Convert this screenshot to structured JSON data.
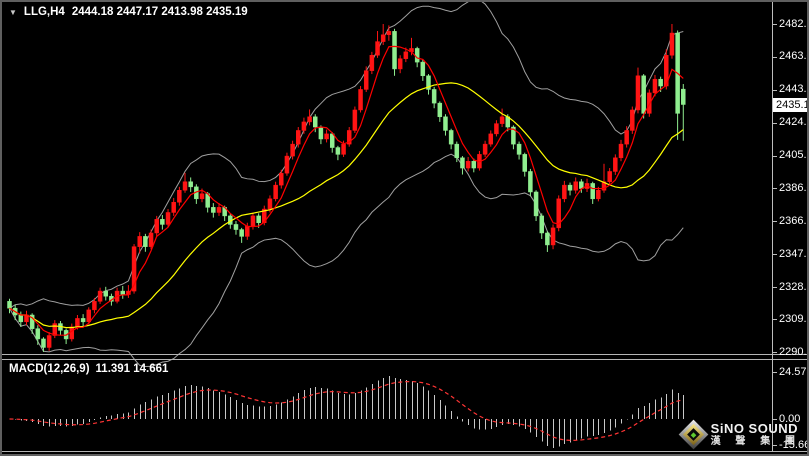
{
  "header": {
    "dropdown_glyph": "▼",
    "symbol_period": "LLG,H4",
    "ohlc_text": "2444.18 2447.17 2413.98 2435.19"
  },
  "macd_panel": {
    "indicator_label": "MACD(12,26,9)",
    "values_text": "11.391 14.661"
  },
  "logo": {
    "brand": "SiNO SOUND",
    "brand_cn": "漢 聲 集 團"
  },
  "colors": {
    "background": "#000000",
    "bull_candle": "#ff1414",
    "bear_candle": "#90ee90",
    "bollinger_band": "#a0a0a0",
    "bollinger_mid": "#ffff00",
    "ma_fast": "#ff0000",
    "macd_histogram": "#c8c8c8",
    "macd_signal": "#ff3434",
    "axis_text": "#ffffff",
    "price_tag_bg": "#ffffff",
    "logo_gold": "#d8b021"
  },
  "chart_data": {
    "type": "candlestick",
    "symbol": "LLG",
    "timeframe": "H4",
    "title": "LLG,H4 2444.18 2447.17 2413.98 2435.19",
    "last_bar": {
      "open": 2444.18,
      "high": 2447.17,
      "low": 2413.98,
      "close": 2435.19
    },
    "price_range": [
      2290.35,
      2482.3
    ],
    "y_ticks": [
      "2482.30",
      "2463.05",
      "2443.80",
      "2424.55",
      "2405.30",
      "2386.05",
      "2366.80",
      "2347.55",
      "2328.30",
      "2309.60",
      "2290.35"
    ],
    "current_price_tag": "2435.19",
    "grid": false,
    "legend_position": "none",
    "indicators": {
      "bollinger": {
        "period": 20,
        "deviation": 2
      },
      "ma_fast_period": 5,
      "macd": {
        "fast": 12,
        "slow": 26,
        "signal_period": 9,
        "current_main": 11.391,
        "current_signal": 14.661,
        "window_max": 24.573,
        "window_min": -15.661,
        "y_ticks": [
          "24.573",
          "0.00",
          "-15.661"
        ]
      }
    },
    "candles_format": [
      "open",
      "high",
      "low",
      "close"
    ],
    "candles": [
      [
        2320,
        2321.5,
        2313,
        2316
      ],
      [
        2316,
        2318,
        2309,
        2312
      ],
      [
        2312,
        2314,
        2305,
        2308
      ],
      [
        2308,
        2314.5,
        2306,
        2312
      ],
      [
        2312,
        2313,
        2301,
        2304
      ],
      [
        2304,
        2306,
        2294.5,
        2298
      ],
      [
        2298,
        2299,
        2290.4,
        2293
      ],
      [
        2293,
        2302,
        2291,
        2300
      ],
      [
        2300,
        2309,
        2298.5,
        2307
      ],
      [
        2307,
        2308.5,
        2300,
        2303
      ],
      [
        2303,
        2304,
        2295,
        2298
      ],
      [
        2298,
        2307,
        2296.5,
        2305
      ],
      [
        2305,
        2312,
        2303.5,
        2310
      ],
      [
        2310,
        2312.5,
        2305.5,
        2308
      ],
      [
        2308,
        2316.5,
        2306.5,
        2315
      ],
      [
        2315,
        2322,
        2313,
        2320
      ],
      [
        2320,
        2328,
        2318.5,
        2326
      ],
      [
        2326,
        2328.5,
        2320.5,
        2323
      ],
      [
        2323,
        2324.5,
        2317.5,
        2320
      ],
      [
        2320,
        2328,
        2318.8,
        2326
      ],
      [
        2326,
        2329,
        2321.5,
        2324
      ],
      [
        2324,
        2329.5,
        2322,
        2326
      ],
      [
        2326,
        2353.5,
        2324.5,
        2352
      ],
      [
        2352,
        2360.5,
        2348,
        2358
      ],
      [
        2358,
        2359.5,
        2349,
        2352
      ],
      [
        2352,
        2362,
        2350.5,
        2360
      ],
      [
        2360,
        2370,
        2358,
        2368
      ],
      [
        2368,
        2370.5,
        2362,
        2365
      ],
      [
        2365,
        2374,
        2363.5,
        2372
      ],
      [
        2372,
        2380.5,
        2370,
        2378
      ],
      [
        2378,
        2387,
        2376,
        2385
      ],
      [
        2385,
        2395.2,
        2383.5,
        2390
      ],
      [
        2390,
        2392.5,
        2384,
        2387
      ],
      [
        2387,
        2388.5,
        2377,
        2380
      ],
      [
        2380,
        2386,
        2378,
        2383
      ],
      [
        2383,
        2384,
        2372,
        2375
      ],
      [
        2375,
        2377.5,
        2369,
        2372
      ],
      [
        2372,
        2377.5,
        2370,
        2375
      ],
      [
        2375,
        2376,
        2367,
        2370
      ],
      [
        2370,
        2371.5,
        2362.5,
        2365
      ],
      [
        2365,
        2367,
        2359,
        2362
      ],
      [
        2362,
        2363,
        2354.2,
        2358
      ],
      [
        2358,
        2366,
        2356,
        2364
      ],
      [
        2364,
        2372,
        2362,
        2370
      ],
      [
        2370,
        2371.5,
        2363,
        2366
      ],
      [
        2366,
        2376,
        2364.5,
        2374
      ],
      [
        2374,
        2382,
        2372,
        2380
      ],
      [
        2380,
        2390,
        2378.5,
        2388
      ],
      [
        2388,
        2397,
        2386,
        2395
      ],
      [
        2395,
        2407,
        2393.5,
        2405
      ],
      [
        2405,
        2414,
        2403,
        2412
      ],
      [
        2412,
        2422,
        2410,
        2420
      ],
      [
        2420,
        2427.5,
        2418,
        2425
      ],
      [
        2425,
        2432.3,
        2423,
        2428
      ],
      [
        2428,
        2429.5,
        2419,
        2422
      ],
      [
        2422,
        2423,
        2412,
        2415
      ],
      [
        2415,
        2420.5,
        2413,
        2418
      ],
      [
        2418,
        2419,
        2407,
        2410
      ],
      [
        2410,
        2411,
        2402.6,
        2406
      ],
      [
        2406,
        2414,
        2404.5,
        2412
      ],
      [
        2412,
        2422,
        2410.5,
        2420
      ],
      [
        2420,
        2434,
        2418.5,
        2432
      ],
      [
        2432,
        2446,
        2430.5,
        2444
      ],
      [
        2444,
        2457.5,
        2442.5,
        2455
      ],
      [
        2455,
        2466,
        2453,
        2464
      ],
      [
        2464,
        2478.2,
        2462.5,
        2472
      ],
      [
        2472,
        2482.3,
        2470,
        2476
      ],
      [
        2476,
        2481.5,
        2472.5,
        2478
      ],
      [
        2478,
        2479.5,
        2452,
        2456
      ],
      [
        2456,
        2464,
        2453.5,
        2462
      ],
      [
        2462,
        2468.5,
        2460,
        2466
      ],
      [
        2466,
        2474.2,
        2464,
        2468
      ],
      [
        2468,
        2469,
        2457,
        2460
      ],
      [
        2460,
        2461.5,
        2449,
        2452
      ],
      [
        2452,
        2453,
        2441,
        2444
      ],
      [
        2444,
        2445.5,
        2433,
        2436
      ],
      [
        2436,
        2437,
        2425,
        2428
      ],
      [
        2428,
        2429.5,
        2417,
        2420
      ],
      [
        2420,
        2421,
        2409,
        2412
      ],
      [
        2412,
        2413.5,
        2401.5,
        2404
      ],
      [
        2404,
        2405,
        2394.2,
        2398
      ],
      [
        2398,
        2404.5,
        2396,
        2402
      ],
      [
        2402,
        2403.5,
        2395.5,
        2398
      ],
      [
        2398,
        2408,
        2396.5,
        2406
      ],
      [
        2406,
        2414,
        2404.5,
        2412
      ],
      [
        2412,
        2420,
        2410.5,
        2418
      ],
      [
        2418,
        2426,
        2416.5,
        2424
      ],
      [
        2424,
        2432.8,
        2422,
        2428
      ],
      [
        2428,
        2429.5,
        2419.5,
        2422
      ],
      [
        2422,
        2423,
        2409,
        2412
      ],
      [
        2412,
        2413.5,
        2403,
        2406
      ],
      [
        2406,
        2407,
        2393,
        2396
      ],
      [
        2396,
        2397.5,
        2381.5,
        2384
      ],
      [
        2384,
        2385,
        2367,
        2370
      ],
      [
        2370,
        2371.5,
        2356.5,
        2360
      ],
      [
        2360,
        2361,
        2348.9,
        2353
      ],
      [
        2353,
        2365,
        2350.5,
        2363
      ],
      [
        2363,
        2382,
        2361,
        2380
      ],
      [
        2380,
        2390.5,
        2378,
        2388
      ],
      [
        2388,
        2389.5,
        2382,
        2385
      ],
      [
        2385,
        2392.5,
        2383,
        2390
      ],
      [
        2390,
        2391.5,
        2383.5,
        2386
      ],
      [
        2386,
        2391.8,
        2384,
        2389
      ],
      [
        2389,
        2390,
        2377,
        2380
      ],
      [
        2380,
        2387,
        2378.5,
        2385
      ],
      [
        2385,
        2400.5,
        2383.5,
        2390
      ],
      [
        2390,
        2398,
        2388,
        2396
      ],
      [
        2396,
        2406,
        2394,
        2404
      ],
      [
        2404,
        2414.5,
        2402,
        2412
      ],
      [
        2412,
        2422.5,
        2410,
        2420
      ],
      [
        2420,
        2434,
        2418,
        2432
      ],
      [
        2432,
        2456.8,
        2430,
        2452
      ],
      [
        2452,
        2453,
        2427,
        2430
      ],
      [
        2430,
        2444,
        2428,
        2442
      ],
      [
        2442,
        2452.5,
        2440,
        2450
      ],
      [
        2450,
        2451.5,
        2442.5,
        2446
      ],
      [
        2446,
        2467.5,
        2444,
        2464
      ],
      [
        2464,
        2482.3,
        2462,
        2477
      ],
      [
        2477,
        2478.5,
        2414.5,
        2430
      ],
      [
        2444.18,
        2447.17,
        2413.98,
        2435.19
      ]
    ]
  }
}
